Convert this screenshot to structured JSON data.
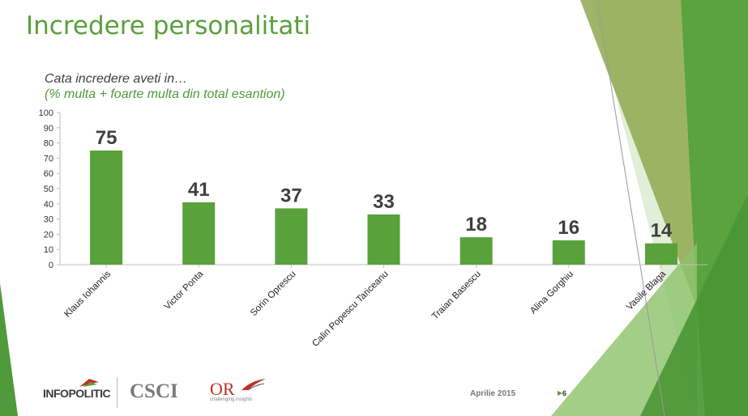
{
  "slide": {
    "title": "Incredere personalitati",
    "subtitle_line1": "Cata incredere aveti in…",
    "subtitle_line2": "(% multa + foarte multa din total esantion)",
    "date": "Aprilie 2015",
    "page_number": "6"
  },
  "logos": {
    "infopolitic": "INFOPOLITIC",
    "csci": "CSCI",
    "or": "OR",
    "or_tagline": "challenging insights"
  },
  "colors": {
    "bar": "#58a13b",
    "title": "#5aa03c",
    "axis": "#bfbfbf",
    "label_text": "#404040",
    "deco_dark": "#4f9a3a",
    "deco_mid": "#7bb35a",
    "deco_light": "#c9e0b8"
  },
  "chart_data": {
    "type": "bar",
    "title": "Cata incredere aveti in…",
    "subtitle": "(% multa + foarte multa din total esantion)",
    "categories": [
      "Klaus Iohannis",
      "Victor Ponta",
      "Sorin Oprescu",
      "Calin Popescu Tariceanu",
      "Traian Basescu",
      "Alina Gorghiu",
      "Vasile Blaga"
    ],
    "values": [
      75,
      41,
      37,
      33,
      18,
      16,
      14
    ],
    "data_labels": [
      "75",
      "41",
      "37",
      "33",
      "18",
      "16",
      "14"
    ],
    "y_ticks": [
      0,
      10,
      20,
      30,
      40,
      50,
      60,
      70,
      80,
      90,
      100
    ],
    "ylim": [
      0,
      100
    ],
    "xlabel": "",
    "ylabel": "",
    "grid": false,
    "legend": "none"
  }
}
